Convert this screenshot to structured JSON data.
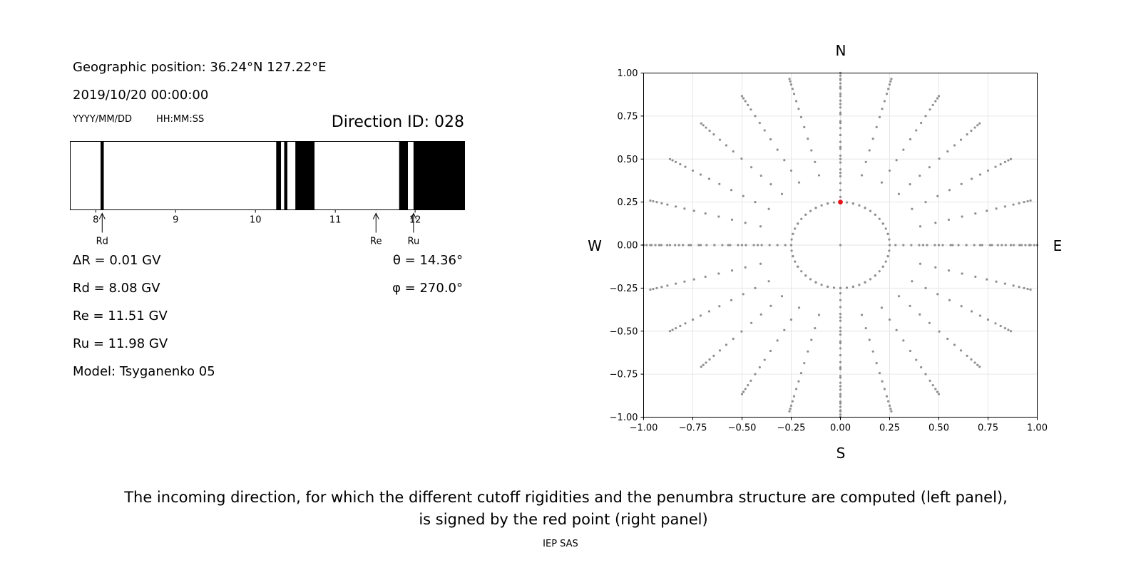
{
  "header": {
    "geo_position": "Geographic position: 36.24°N 127.22°E",
    "datetime": "2019/10/20 00:00:00",
    "date_format": "YYYY/MM/DD",
    "time_format": "HH:MM:SS",
    "direction_id": "Direction ID: 028"
  },
  "params": {
    "delta_r": "ΔR = 0.01 GV",
    "rd": "Rd = 8.08 GV",
    "re": "Re = 11.51 GV",
    "ru": "Ru = 11.98 GV",
    "model": "Model: Tsyganenko 05",
    "theta": "θ = 14.36°",
    "phi": "φ = 270.0°"
  },
  "caption": {
    "line1": "The incoming direction, for which the different cutoff rigidities and the penumbra structure are computed (left panel),",
    "line2": "is signed by the red point (right panel)",
    "credit": "IEP SAS"
  },
  "chart_data": [
    {
      "type": "bar",
      "name": "penumbra",
      "xlim": [
        7.68,
        12.62
      ],
      "xticks": [
        8,
        9,
        10,
        11,
        12
      ],
      "colors": {
        "forbidden": "#000000",
        "allowed": "#ffffff"
      },
      "forbidden_bands": [
        [
          8.06,
          8.1
        ],
        [
          10.26,
          10.32
        ],
        [
          10.36,
          10.4
        ],
        [
          10.5,
          10.74
        ],
        [
          11.8,
          11.91
        ],
        [
          11.98,
          12.62
        ]
      ],
      "markers": [
        {
          "label": "Rd",
          "value": 8.08
        },
        {
          "label": "Re",
          "value": 11.51
        },
        {
          "label": "Ru",
          "value": 11.98
        }
      ]
    },
    {
      "type": "scatter",
      "name": "directions",
      "xlim": [
        -1.0,
        1.0
      ],
      "ylim": [
        -1.0,
        1.0
      ],
      "xticks": [
        "−1.00",
        "−0.75",
        "−0.50",
        "−0.25",
        "0.00",
        "0.25",
        "0.50",
        "0.75",
        "1.00"
      ],
      "yticks": [
        "−1.00",
        "−0.75",
        "−0.50",
        "−0.25",
        "0.00",
        "0.25",
        "0.50",
        "0.75",
        "1.00"
      ],
      "grid": true,
      "compass": {
        "north": "N",
        "south": "S",
        "east": "E",
        "west": "W"
      },
      "colors": {
        "points": "#8f8f8f",
        "selected": "#e8141b"
      },
      "grid_azimuth_step_deg": 15,
      "grid_radii": [
        0.25,
        0.42,
        0.5,
        0.57,
        0.64,
        0.71,
        0.77,
        0.82,
        0.866,
        0.91,
        0.94,
        0.966,
        0.985,
        1.0
      ],
      "selected": {
        "x": 0.0,
        "y": 0.25
      }
    }
  ]
}
